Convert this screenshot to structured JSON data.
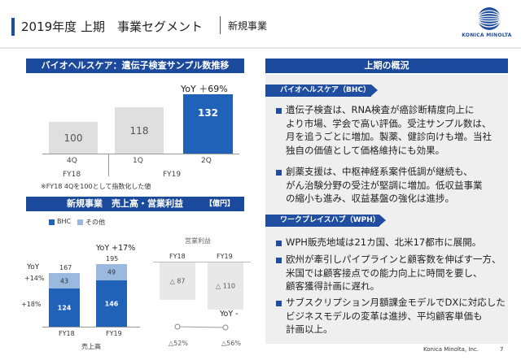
{
  "header": {
    "title": "2019年度 上期　事業セグメント",
    "subtitle": "新規事業",
    "logo_text": "KONICA MINOLTA"
  },
  "chart1": {
    "title": "バイオヘルスケア：遺伝子検査サンプル数推移",
    "yoy_label": "YoY ＋69%",
    "footnote": "※FY18 4Qを100として指数化した値",
    "bars": [
      {
        "quarter": "4Q",
        "value": "100"
      },
      {
        "quarter": "1Q",
        "value": "118"
      },
      {
        "quarter": "2Q",
        "value": "132"
      }
    ],
    "fy_labels": [
      "FY18",
      "FY19"
    ]
  },
  "chart2": {
    "title": "新規事業　売上高・営業利益",
    "unit": "【億円】",
    "legend": [
      "BHC",
      "その他"
    ],
    "sales": {
      "yoy": "YoY +17%",
      "yoy_axis": "YoY",
      "other_yoy": "+14%",
      "bhc_yoy": "+18%",
      "bars": [
        {
          "year": "FY18",
          "total": "167",
          "other": "43",
          "bhc": "124"
        },
        {
          "year": "FY19",
          "total": "195",
          "other": "49",
          "bhc": "146"
        }
      ],
      "axis_label": "売上高"
    },
    "op": {
      "label": "営業利益",
      "bars": [
        {
          "year": "FY18",
          "value": "△ 87"
        },
        {
          "year": "FY19",
          "value": "△ 110"
        }
      ],
      "yoy": "YoY -",
      "margins": [
        "△52%",
        "△56%"
      ]
    }
  },
  "overview": {
    "title": "上期の概況",
    "bhc_head": "バイオヘルスケア（BHC）",
    "bhc_bullets": [
      [
        "遺伝子検査は、RNA検査が癌診断精度向上に",
        "より市場、学会で高い評価。受注サンプル数は、",
        "月を追うごとに増加。製薬、健診向けも増。当社",
        "独自の価値として価格維持にも効果。"
      ],
      [
        "創薬支援は、中枢神経系案件低調が継続も、",
        "がん治験分野の受注が堅調に増加。低収益事業",
        "の縮小も進み、収益基盤の強化は進捗。"
      ]
    ],
    "wph_head": "ワークプレイスハブ（WPH）",
    "wph_bullets": [
      [
        "WPH販売地域は21カ国、北米17都市に展開。"
      ],
      [
        "欧州が牽引しパイプラインと顧客数を伸ばす一方、",
        "米国では顧客接点での能力向上に時間を要し、",
        "顧客獲得計画に遅れ。"
      ],
      [
        "サブスクリプション月額課金モデルでDXに対応した",
        "ビジネスモデルの変革は進捗、平均顧客単価も",
        "計画以上。"
      ]
    ]
  },
  "footer": {
    "company": "Konica Minolta, Inc.",
    "page": "7"
  },
  "colors": {
    "dark_blue": "#1f4ea1",
    "bhc": "#1f62b8",
    "other": "#9bb8df",
    "tile": "#dfdfdf"
  }
}
